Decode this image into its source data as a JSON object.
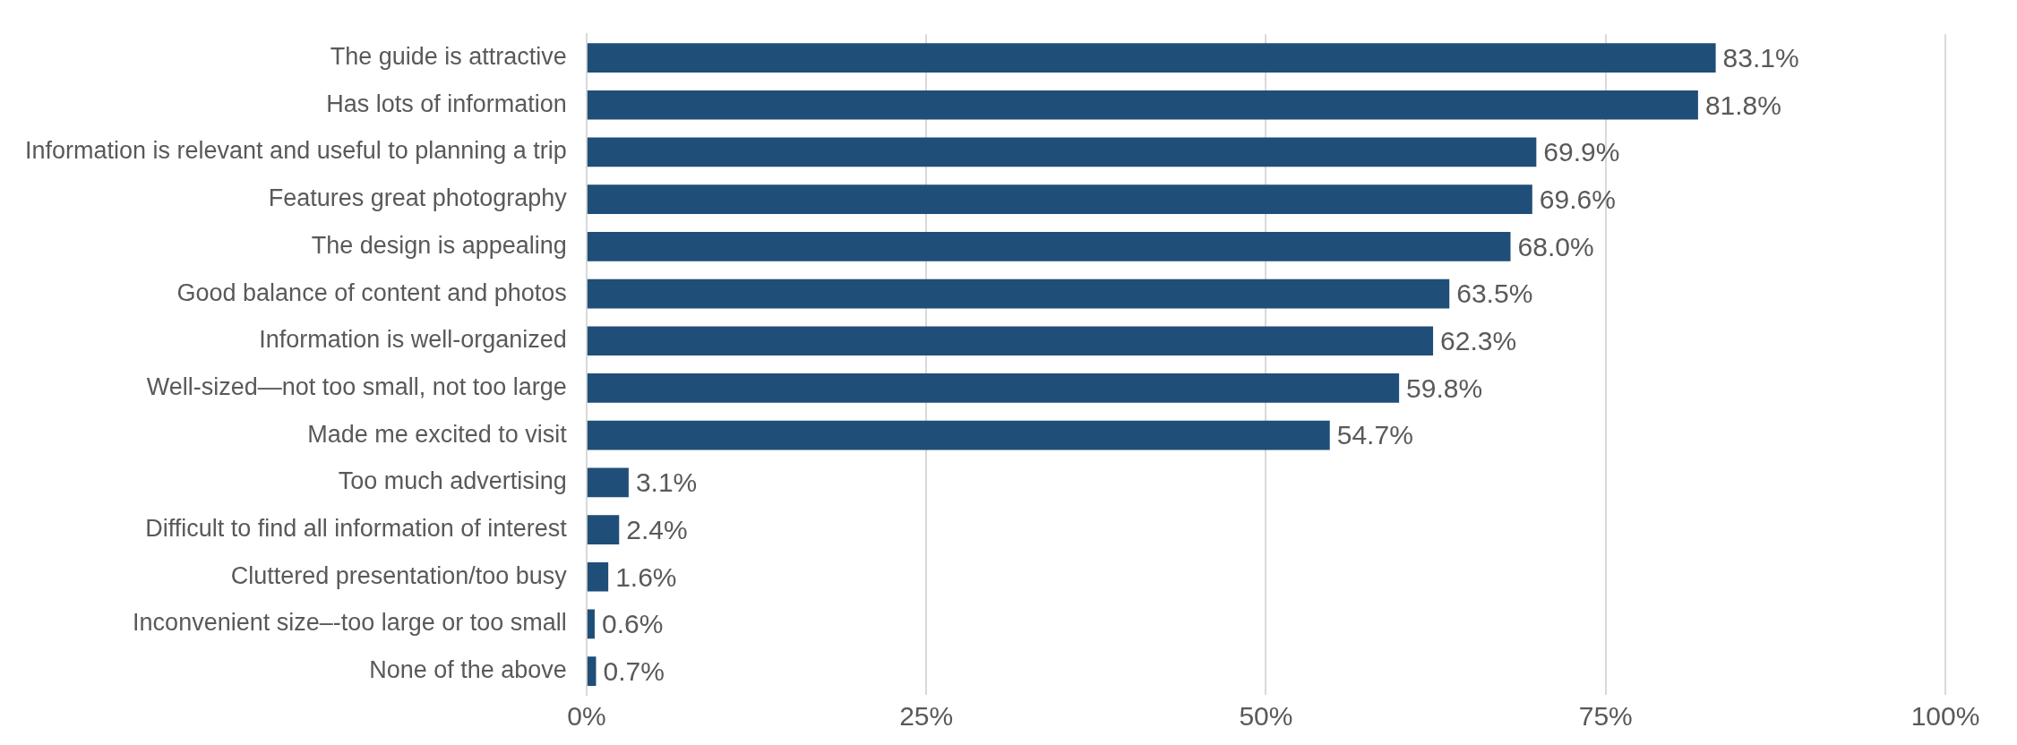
{
  "chart_data": {
    "type": "bar",
    "orientation": "horizontal",
    "categories": [
      "The guide is attractive",
      "Has lots of information",
      "Information is relevant and useful to planning a trip",
      "Features great photography",
      "The design is appealing",
      "Good balance of content and photos",
      "Information is well-organized",
      "Well-sized—not too small, not too large",
      "Made me excited to visit",
      "Too much advertising",
      "Difficult to find all information of interest",
      "Cluttered presentation/too busy",
      "Inconvenient size–-too large or too small",
      "None of the above"
    ],
    "values": [
      83.1,
      81.8,
      69.9,
      69.6,
      68.0,
      63.5,
      62.3,
      59.8,
      54.7,
      3.1,
      2.4,
      1.6,
      0.6,
      0.7
    ],
    "value_labels": [
      "83.1%",
      "81.8%",
      "69.9%",
      "69.6%",
      "68.0%",
      "63.5%",
      "62.3%",
      "59.8%",
      "54.7%",
      "3.1%",
      "2.4%",
      "1.6%",
      "0.6%",
      "0.7%"
    ],
    "color": "#1f4e79",
    "xlim": [
      0,
      100
    ],
    "xticks": [
      {
        "value": 0,
        "label": "0%"
      },
      {
        "value": 25,
        "label": "25%"
      },
      {
        "value": 50,
        "label": "50%"
      },
      {
        "value": 75,
        "label": "75%"
      },
      {
        "value": 100,
        "label": "100%"
      }
    ],
    "grid": "x"
  }
}
